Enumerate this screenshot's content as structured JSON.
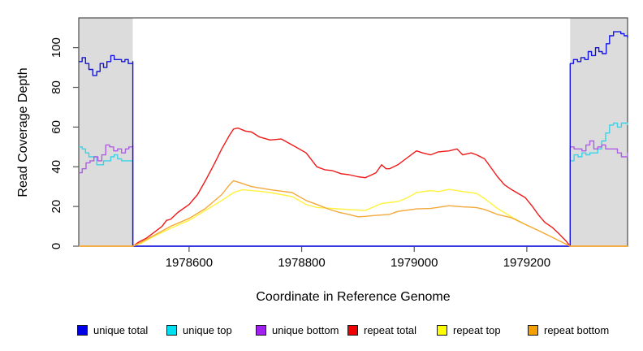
{
  "chart_data": {
    "type": "line",
    "title": "",
    "xlabel": "Coordinate in Reference Genome",
    "ylabel": "Read Coverage Depth",
    "xlim": [
      1978404,
      1979379
    ],
    "ylim": [
      0,
      115
    ],
    "x_ticks": [
      "1978600",
      "1978800",
      "1979000",
      "1979200"
    ],
    "x_tick_values": [
      1978600,
      1978800,
      1979000,
      1979200
    ],
    "y_ticks": [
      "0",
      "20",
      "40",
      "60",
      "80",
      "100"
    ],
    "y_tick_values": [
      0,
      20,
      40,
      60,
      80,
      100
    ],
    "grid": false,
    "legend_position": "bottom",
    "shaded_regions": [
      {
        "x0": 1978404,
        "x1": 1978500,
        "color": "#dcdcdc"
      },
      {
        "x0": 1979277,
        "x1": 1979379,
        "color": "#dcdcdc"
      }
    ],
    "draw_order": [
      1,
      2,
      0,
      3,
      4,
      5
    ],
    "series": [
      {
        "name": "unique total",
        "color": "#1414e0",
        "legend_color": "#0000e6",
        "step": true,
        "points": [
          [
            1978404,
            93
          ],
          [
            1978410,
            95
          ],
          [
            1978416,
            92
          ],
          [
            1978422,
            89
          ],
          [
            1978429,
            86
          ],
          [
            1978436,
            88
          ],
          [
            1978442,
            92
          ],
          [
            1978448,
            90
          ],
          [
            1978454,
            93
          ],
          [
            1978461,
            96
          ],
          [
            1978467,
            94
          ],
          [
            1978473,
            94
          ],
          [
            1978480,
            93
          ],
          [
            1978486,
            94
          ],
          [
            1978492,
            92
          ],
          [
            1978500,
            93
          ],
          [
            1978500,
            0
          ],
          [
            1979277,
            0
          ],
          [
            1979277,
            92
          ],
          [
            1979283,
            94
          ],
          [
            1979290,
            93
          ],
          [
            1979296,
            95
          ],
          [
            1979303,
            94
          ],
          [
            1979309,
            98
          ],
          [
            1979315,
            96
          ],
          [
            1979322,
            100
          ],
          [
            1979328,
            98
          ],
          [
            1979334,
            97
          ],
          [
            1979341,
            102
          ],
          [
            1979347,
            106
          ],
          [
            1979354,
            108
          ],
          [
            1979360,
            108
          ],
          [
            1979367,
            107
          ],
          [
            1979373,
            106
          ],
          [
            1979379,
            105
          ]
        ]
      },
      {
        "name": "unique top",
        "color": "#3cd2e6",
        "legend_color": "#00e0f0",
        "step": true,
        "points": [
          [
            1978404,
            50
          ],
          [
            1978410,
            49
          ],
          [
            1978416,
            47
          ],
          [
            1978422,
            45
          ],
          [
            1978429,
            45
          ],
          [
            1978436,
            41
          ],
          [
            1978442,
            41
          ],
          [
            1978448,
            43
          ],
          [
            1978454,
            43
          ],
          [
            1978461,
            45
          ],
          [
            1978467,
            46
          ],
          [
            1978473,
            44
          ],
          [
            1978480,
            43
          ],
          [
            1978486,
            43
          ],
          [
            1978492,
            43
          ],
          [
            1978500,
            42
          ],
          [
            1978500,
            0
          ],
          [
            1979277,
            0
          ],
          [
            1979277,
            43
          ],
          [
            1979284,
            46
          ],
          [
            1979291,
            45
          ],
          [
            1979298,
            47
          ],
          [
            1979305,
            46
          ],
          [
            1979312,
            47
          ],
          [
            1979319,
            47
          ],
          [
            1979326,
            49
          ],
          [
            1979333,
            53
          ],
          [
            1979340,
            57
          ],
          [
            1979347,
            61
          ],
          [
            1979354,
            62
          ],
          [
            1979361,
            60
          ],
          [
            1979368,
            62
          ],
          [
            1979379,
            61
          ]
        ]
      },
      {
        "name": "unique bottom",
        "color": "#ac5fe0",
        "legend_color": "#a020f0",
        "step": true,
        "points": [
          [
            1978404,
            37
          ],
          [
            1978410,
            39
          ],
          [
            1978417,
            42
          ],
          [
            1978424,
            43
          ],
          [
            1978431,
            45
          ],
          [
            1978438,
            43
          ],
          [
            1978445,
            46
          ],
          [
            1978452,
            51
          ],
          [
            1978459,
            50
          ],
          [
            1978466,
            48
          ],
          [
            1978473,
            49
          ],
          [
            1978480,
            47
          ],
          [
            1978487,
            49
          ],
          [
            1978493,
            50
          ],
          [
            1978500,
            51
          ],
          [
            1978500,
            0
          ],
          [
            1979277,
            0
          ],
          [
            1979277,
            50
          ],
          [
            1979284,
            49
          ],
          [
            1979291,
            49
          ],
          [
            1979298,
            48
          ],
          [
            1979305,
            51
          ],
          [
            1979312,
            53
          ],
          [
            1979319,
            49
          ],
          [
            1979326,
            50
          ],
          [
            1979333,
            51
          ],
          [
            1979340,
            49
          ],
          [
            1979347,
            49
          ],
          [
            1979354,
            49
          ],
          [
            1979361,
            47
          ],
          [
            1979368,
            45
          ],
          [
            1979379,
            47
          ]
        ]
      },
      {
        "name": "repeat total",
        "color": "#f01818",
        "legend_color": "#f00000",
        "step": false,
        "points": [
          [
            1978404,
            0
          ],
          [
            1978500,
            0
          ],
          [
            1978503,
            0.5
          ],
          [
            1978510,
            2
          ],
          [
            1978524,
            4
          ],
          [
            1978538,
            7
          ],
          [
            1978552,
            10
          ],
          [
            1978560,
            13
          ],
          [
            1978567,
            13.5
          ],
          [
            1978580,
            17
          ],
          [
            1978600,
            21
          ],
          [
            1978615,
            26
          ],
          [
            1978629,
            33
          ],
          [
            1978644,
            41
          ],
          [
            1978658,
            49
          ],
          [
            1978672,
            56
          ],
          [
            1978679,
            59
          ],
          [
            1978687,
            59.5
          ],
          [
            1978700,
            58
          ],
          [
            1978711,
            57.5
          ],
          [
            1978725,
            55
          ],
          [
            1978744,
            53.5
          ],
          [
            1978764,
            54
          ],
          [
            1978783,
            51
          ],
          [
            1978808,
            47
          ],
          [
            1978827,
            40
          ],
          [
            1978841,
            38.5
          ],
          [
            1978855,
            38
          ],
          [
            1978870,
            36.5
          ],
          [
            1978884,
            36
          ],
          [
            1978900,
            35
          ],
          [
            1978913,
            34.5
          ],
          [
            1978925,
            36
          ],
          [
            1978932,
            37
          ],
          [
            1978942,
            41
          ],
          [
            1978950,
            39
          ],
          [
            1978956,
            39
          ],
          [
            1978971,
            41
          ],
          [
            1978985,
            44
          ],
          [
            1979004,
            48
          ],
          [
            1979015,
            47
          ],
          [
            1979029,
            46
          ],
          [
            1979043,
            47.5
          ],
          [
            1979062,
            48
          ],
          [
            1979076,
            49
          ],
          [
            1979086,
            46
          ],
          [
            1979101,
            47
          ],
          [
            1979111,
            46
          ],
          [
            1979125,
            44
          ],
          [
            1979148,
            35
          ],
          [
            1979160,
            31
          ],
          [
            1979173,
            28.5
          ],
          [
            1979197,
            24.5
          ],
          [
            1979210,
            20
          ],
          [
            1979220,
            16
          ],
          [
            1979232,
            12
          ],
          [
            1979245,
            9.5
          ],
          [
            1979258,
            6
          ],
          [
            1979270,
            2.5
          ],
          [
            1979277,
            0
          ],
          [
            1979379,
            0
          ]
        ]
      },
      {
        "name": "repeat top",
        "color": "#fff23d",
        "legend_color": "#ffff00",
        "step": false,
        "points": [
          [
            1978404,
            0
          ],
          [
            1978500,
            0
          ],
          [
            1978515,
            1.5
          ],
          [
            1978538,
            5
          ],
          [
            1978567,
            9
          ],
          [
            1978600,
            13
          ],
          [
            1978629,
            18
          ],
          [
            1978658,
            23
          ],
          [
            1978679,
            27
          ],
          [
            1978695,
            28.5
          ],
          [
            1978711,
            28
          ],
          [
            1978730,
            27.5
          ],
          [
            1978744,
            27
          ],
          [
            1978764,
            26
          ],
          [
            1978783,
            25
          ],
          [
            1978808,
            21
          ],
          [
            1978827,
            19.5
          ],
          [
            1978855,
            19
          ],
          [
            1978884,
            18.4
          ],
          [
            1978913,
            18
          ],
          [
            1978942,
            21.5
          ],
          [
            1978971,
            22.5
          ],
          [
            1978985,
            24
          ],
          [
            1979004,
            27
          ],
          [
            1979029,
            28
          ],
          [
            1979043,
            27.5
          ],
          [
            1979062,
            28.6
          ],
          [
            1979076,
            28
          ],
          [
            1979086,
            27.5
          ],
          [
            1979101,
            27
          ],
          [
            1979111,
            26.5
          ],
          [
            1979125,
            24
          ],
          [
            1979148,
            19
          ],
          [
            1979173,
            14.7
          ],
          [
            1979197,
            11
          ],
          [
            1979220,
            8
          ],
          [
            1979245,
            4.5
          ],
          [
            1979270,
            1
          ],
          [
            1979277,
            0
          ],
          [
            1979379,
            0
          ]
        ]
      },
      {
        "name": "repeat bottom",
        "color": "#f3a83c",
        "legend_color": "#f5a000",
        "step": false,
        "points": [
          [
            1978404,
            0
          ],
          [
            1978500,
            0
          ],
          [
            1978515,
            2
          ],
          [
            1978538,
            5.5
          ],
          [
            1978567,
            10
          ],
          [
            1978600,
            14
          ],
          [
            1978629,
            19
          ],
          [
            1978658,
            26
          ],
          [
            1978672,
            31
          ],
          [
            1978679,
            33
          ],
          [
            1978690,
            32
          ],
          [
            1978711,
            30
          ],
          [
            1978744,
            28.5
          ],
          [
            1978783,
            27
          ],
          [
            1978808,
            23
          ],
          [
            1978827,
            21
          ],
          [
            1978845,
            19
          ],
          [
            1978855,
            18
          ],
          [
            1978870,
            16.8
          ],
          [
            1978884,
            16
          ],
          [
            1978900,
            14.8
          ],
          [
            1978913,
            15
          ],
          [
            1978932,
            15.5
          ],
          [
            1978956,
            16
          ],
          [
            1978971,
            17.5
          ],
          [
            1979004,
            18.8
          ],
          [
            1979029,
            19
          ],
          [
            1979062,
            20.4
          ],
          [
            1979086,
            19.8
          ],
          [
            1979101,
            19.6
          ],
          [
            1979111,
            19.4
          ],
          [
            1979125,
            18.5
          ],
          [
            1979148,
            16
          ],
          [
            1979173,
            14.3
          ],
          [
            1979197,
            11
          ],
          [
            1979220,
            8
          ],
          [
            1979245,
            4.5
          ],
          [
            1979270,
            1
          ],
          [
            1979277,
            0
          ],
          [
            1979379,
            0
          ]
        ]
      }
    ]
  },
  "labels": {
    "xlabel": "Coordinate in Reference Genome",
    "ylabel": "Read Coverage Depth"
  }
}
